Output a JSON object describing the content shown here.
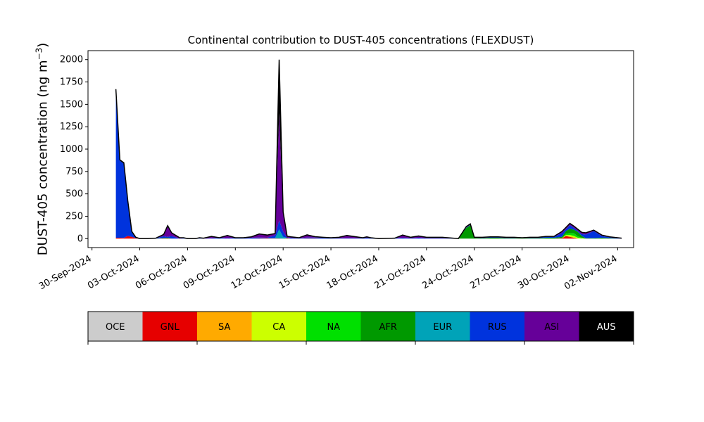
{
  "chart_data": {
    "type": "area",
    "stacked": true,
    "title": "Continental contribution to DUST-405 concentrations (FLEXDUST)",
    "ylabel": "DUST-405 concentration (ng m",
    "ylabel_sup": "−3",
    "ylabel_close": ")",
    "xlabel": "",
    "ylim": [
      -100,
      2100
    ],
    "yticks": [
      0,
      250,
      500,
      750,
      1000,
      1250,
      1500,
      1750,
      2000
    ],
    "xlim": [
      "2024-09-29T18:00",
      "2024-11-03T00:00"
    ],
    "xticks": [
      "30-Sep-2024",
      "03-Oct-2024",
      "06-Oct-2024",
      "09-Oct-2024",
      "12-Oct-2024",
      "15-Oct-2024",
      "18-Oct-2024",
      "21-Oct-2024",
      "24-Oct-2024",
      "27-Oct-2024",
      "30-Oct-2024",
      "02-Nov-2024"
    ],
    "grid": false,
    "legend": "colorbar-below",
    "regions": [
      {
        "name": "OCE",
        "color": "#cccccc",
        "text_color": "#000000"
      },
      {
        "name": "GNL",
        "color": "#e60000",
        "text_color": "#000000"
      },
      {
        "name": "SA",
        "color": "#ffaa00",
        "text_color": "#000000"
      },
      {
        "name": "CA",
        "color": "#ccff00",
        "text_color": "#000000"
      },
      {
        "name": "NA",
        "color": "#00e000",
        "text_color": "#000000"
      },
      {
        "name": "AFR",
        "color": "#009900",
        "text_color": "#000000"
      },
      {
        "name": "EUR",
        "color": "#00a3b8",
        "text_color": "#000000"
      },
      {
        "name": "RUS",
        "color": "#0033dd",
        "text_color": "#000000"
      },
      {
        "name": "ASI",
        "color": "#660099",
        "text_color": "#000000"
      },
      {
        "name": "AUS",
        "color": "#000000",
        "text_color": "#ffffff"
      }
    ],
    "x": [
      "2024-10-01T12:00",
      "2024-10-01T18:00",
      "2024-10-02T00:00",
      "2024-10-02T06:00",
      "2024-10-02T12:00",
      "2024-10-02T18:00",
      "2024-10-03T00:00",
      "2024-10-03T12:00",
      "2024-10-04T00:00",
      "2024-10-04T12:00",
      "2024-10-04T18:00",
      "2024-10-05T00:00",
      "2024-10-05T12:00",
      "2024-10-05T18:00",
      "2024-10-06T00:00",
      "2024-10-06T12:00",
      "2024-10-06T18:00",
      "2024-10-07T00:00",
      "2024-10-07T12:00",
      "2024-10-08T00:00",
      "2024-10-08T12:00",
      "2024-10-09T00:00",
      "2024-10-09T12:00",
      "2024-10-10T00:00",
      "2024-10-10T12:00",
      "2024-10-11T00:00",
      "2024-10-11T12:00",
      "2024-10-11T18:00",
      "2024-10-12T00:00",
      "2024-10-12T06:00",
      "2024-10-12T12:00",
      "2024-10-12T18:00",
      "2024-10-13T00:00",
      "2024-10-13T12:00",
      "2024-10-14T00:00",
      "2024-10-14T12:00",
      "2024-10-15T00:00",
      "2024-10-15T12:00",
      "2024-10-16T00:00",
      "2024-10-17T00:00",
      "2024-10-17T06:00",
      "2024-10-17T12:00",
      "2024-10-18T00:00",
      "2024-10-19T00:00",
      "2024-10-19T12:00",
      "2024-10-20T00:00",
      "2024-10-20T12:00",
      "2024-10-21T00:00",
      "2024-10-22T00:00",
      "2024-10-23T00:00",
      "2024-10-23T12:00",
      "2024-10-23T18:00",
      "2024-10-24T00:00",
      "2024-10-24T12:00",
      "2024-10-25T00:00",
      "2024-10-25T12:00",
      "2024-10-26T00:00",
      "2024-10-26T12:00",
      "2024-10-27T00:00",
      "2024-10-27T12:00",
      "2024-10-28T00:00",
      "2024-10-28T12:00",
      "2024-10-29T00:00",
      "2024-10-29T12:00",
      "2024-10-29T18:00",
      "2024-10-30T00:00",
      "2024-10-30T06:00",
      "2024-10-30T12:00",
      "2024-10-30T18:00",
      "2024-10-31T00:00",
      "2024-10-31T12:00",
      "2024-11-01T00:00",
      "2024-11-01T12:00",
      "2024-11-02T00:00",
      "2024-11-02T06:00"
    ],
    "series": [
      {
        "name": "OCE",
        "values": [
          0,
          0,
          0,
          0,
          0,
          0,
          0,
          0,
          0,
          0,
          0,
          0,
          0,
          0,
          0,
          0,
          0,
          0,
          0,
          0,
          0,
          0,
          0,
          0,
          0,
          0,
          0,
          0,
          0,
          0,
          0,
          0,
          0,
          0,
          0,
          0,
          0,
          0,
          0,
          0,
          0,
          0,
          0,
          0,
          0,
          0,
          0,
          0,
          0,
          0,
          0,
          0,
          0,
          0,
          0,
          0,
          0,
          0,
          0,
          0,
          0,
          0,
          0,
          0,
          0,
          0,
          0,
          0,
          0,
          0,
          0,
          0,
          0,
          0,
          0
        ]
      },
      {
        "name": "GNL",
        "values": [
          10,
          10,
          8,
          30,
          20,
          5,
          0,
          0,
          0,
          2,
          2,
          0,
          0,
          0,
          0,
          0,
          0,
          0,
          0,
          0,
          0,
          0,
          0,
          0,
          2,
          5,
          2,
          2,
          0,
          2,
          0,
          0,
          0,
          2,
          2,
          0,
          0,
          0,
          0,
          0,
          0,
          0,
          0,
          0,
          0,
          0,
          0,
          0,
          0,
          0,
          0,
          0,
          0,
          0,
          0,
          0,
          0,
          0,
          0,
          0,
          0,
          0,
          0,
          5,
          30,
          20,
          10,
          0,
          0,
          0,
          0,
          0,
          0,
          0,
          0
        ]
      },
      {
        "name": "SA",
        "values": [
          0,
          0,
          0,
          0,
          0,
          0,
          0,
          0,
          0,
          0,
          0,
          0,
          0,
          0,
          0,
          0,
          0,
          0,
          0,
          0,
          0,
          0,
          0,
          0,
          0,
          0,
          0,
          0,
          0,
          0,
          0,
          0,
          0,
          0,
          0,
          0,
          0,
          0,
          0,
          0,
          0,
          0,
          0,
          0,
          0,
          0,
          0,
          0,
          0,
          0,
          0,
          0,
          0,
          0,
          0,
          0,
          0,
          0,
          0,
          0,
          0,
          0,
          0,
          0,
          0,
          0,
          0,
          0,
          0,
          0,
          0,
          0,
          0,
          0,
          0
        ]
      },
      {
        "name": "CA",
        "values": [
          0,
          0,
          0,
          0,
          0,
          0,
          0,
          0,
          0,
          0,
          0,
          0,
          0,
          0,
          0,
          0,
          0,
          0,
          0,
          0,
          0,
          0,
          0,
          0,
          0,
          0,
          0,
          0,
          0,
          0,
          0,
          0,
          0,
          0,
          0,
          0,
          0,
          0,
          0,
          0,
          0,
          0,
          0,
          0,
          0,
          0,
          0,
          0,
          0,
          0,
          0,
          0,
          0,
          0,
          0,
          0,
          0,
          0,
          0,
          0,
          0,
          0,
          0,
          0,
          10,
          20,
          20,
          10,
          5,
          0,
          0,
          0,
          0,
          0,
          0
        ]
      },
      {
        "name": "NA",
        "values": [
          0,
          0,
          0,
          0,
          0,
          0,
          0,
          0,
          0,
          0,
          0,
          0,
          0,
          0,
          0,
          0,
          0,
          0,
          0,
          0,
          0,
          0,
          0,
          0,
          0,
          0,
          0,
          0,
          0,
          0,
          0,
          0,
          0,
          0,
          0,
          0,
          0,
          0,
          0,
          0,
          0,
          0,
          0,
          0,
          0,
          0,
          0,
          0,
          0,
          0,
          0,
          0,
          0,
          0,
          0,
          0,
          0,
          0,
          0,
          0,
          0,
          0,
          0,
          0,
          15,
          20,
          30,
          15,
          5,
          0,
          0,
          0,
          0,
          0,
          0
        ]
      },
      {
        "name": "AFR",
        "values": [
          0,
          0,
          0,
          0,
          0,
          0,
          0,
          0,
          0,
          5,
          8,
          0,
          0,
          0,
          0,
          0,
          0,
          0,
          0,
          0,
          0,
          0,
          0,
          0,
          0,
          0,
          0,
          0,
          0,
          5,
          0,
          0,
          0,
          0,
          0,
          0,
          0,
          0,
          0,
          0,
          0,
          0,
          0,
          0,
          0,
          0,
          0,
          0,
          0,
          0,
          120,
          150,
          10,
          5,
          10,
          10,
          5,
          5,
          5,
          5,
          5,
          10,
          10,
          15,
          30,
          50,
          40,
          50,
          20,
          5,
          5,
          10,
          5,
          0,
          0
        ]
      },
      {
        "name": "EUR",
        "values": [
          0,
          0,
          0,
          0,
          0,
          0,
          0,
          0,
          0,
          0,
          0,
          0,
          0,
          0,
          0,
          0,
          0,
          0,
          0,
          0,
          0,
          0,
          0,
          0,
          0,
          0,
          5,
          100,
          20,
          0,
          0,
          0,
          0,
          0,
          0,
          0,
          0,
          0,
          0,
          0,
          0,
          0,
          0,
          0,
          0,
          0,
          0,
          0,
          0,
          0,
          0,
          0,
          0,
          0,
          0,
          0,
          0,
          0,
          0,
          0,
          0,
          0,
          0,
          0,
          0,
          0,
          0,
          0,
          0,
          0,
          0,
          0,
          0,
          0,
          0
        ]
      },
      {
        "name": "RUS",
        "values": [
          1640,
          860,
          830,
          380,
          50,
          0,
          0,
          0,
          5,
          20,
          10,
          30,
          0,
          5,
          0,
          0,
          5,
          0,
          5,
          10,
          5,
          10,
          5,
          10,
          10,
          5,
          30,
          100,
          60,
          0,
          10,
          5,
          5,
          10,
          10,
          10,
          5,
          5,
          5,
          5,
          10,
          5,
          0,
          5,
          10,
          5,
          10,
          5,
          5,
          0,
          5,
          5,
          5,
          5,
          5,
          5,
          5,
          5,
          0,
          5,
          5,
          10,
          10,
          40,
          20,
          40,
          20,
          10,
          20,
          40,
          80,
          20,
          10,
          5,
          0
        ]
      },
      {
        "name": "ASI",
        "values": [
          0,
          0,
          0,
          0,
          0,
          0,
          0,
          0,
          0,
          20,
          120,
          30,
          10,
          5,
          0,
          0,
          5,
          0,
          20,
          0,
          30,
          0,
          5,
          10,
          40,
          30,
          20,
          1200,
          200,
          20,
          10,
          10,
          5,
          30,
          10,
          5,
          5,
          10,
          30,
          5,
          10,
          5,
          0,
          0,
          30,
          10,
          20,
          10,
          10,
          0,
          10,
          10,
          0,
          5,
          5,
          5,
          5,
          5,
          5,
          5,
          5,
          5,
          5,
          20,
          20,
          20,
          20,
          20,
          20,
          20,
          10,
          10,
          5,
          5,
          5
        ]
      },
      {
        "name": "AUS",
        "values": [
          20,
          10,
          10,
          10,
          10,
          10,
          0,
          0,
          0,
          0,
          5,
          5,
          0,
          0,
          0,
          0,
          0,
          5,
          0,
          0,
          0,
          0,
          0,
          0,
          0,
          0,
          0,
          598,
          18,
          0,
          0,
          0,
          0,
          0,
          0,
          0,
          0,
          0,
          0,
          0,
          0,
          0,
          0,
          0,
          0,
          0,
          0,
          0,
          0,
          0,
          0,
          0,
          0,
          0,
          0,
          0,
          0,
          0,
          0,
          0,
          0,
          0,
          0,
          0,
          0,
          0,
          0,
          0,
          0,
          0,
          0,
          0,
          0,
          0,
          0
        ]
      }
    ]
  }
}
